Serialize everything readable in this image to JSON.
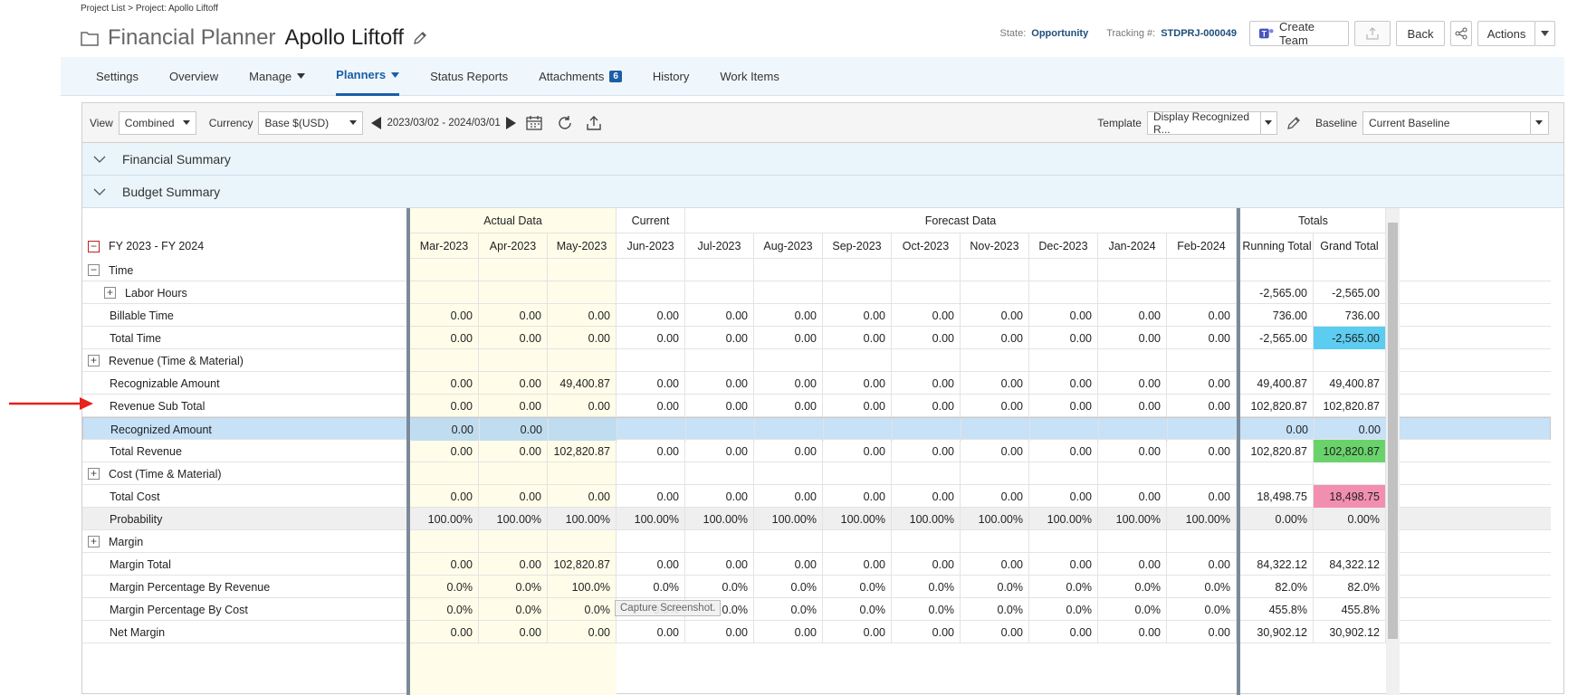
{
  "breadcrumb": "Project List > Project: Apollo Liftoff",
  "header": {
    "title": "Financial Planner",
    "project": "Apollo Liftoff"
  },
  "meta": {
    "state_label": "State:",
    "state_value": "Opportunity",
    "tracking_label": "Tracking #:",
    "tracking_value": "STDPRJ-000049"
  },
  "buttons": {
    "create_team": "Create Team",
    "back": "Back",
    "actions": "Actions"
  },
  "nav": {
    "tabs": [
      {
        "label": "Settings"
      },
      {
        "label": "Overview"
      },
      {
        "label": "Manage"
      },
      {
        "label": "Planners"
      },
      {
        "label": "Status Reports"
      },
      {
        "label": "Attachments",
        "badge": "6"
      },
      {
        "label": "History"
      },
      {
        "label": "Work Items"
      }
    ]
  },
  "toolbar": {
    "view_label": "View",
    "view_value": "Combined",
    "currency_label": "Currency",
    "currency_value": "Base $(USD)",
    "date_range": "2023/03/02 - 2024/03/01",
    "template_label": "Template",
    "template_value": "Display Recognized R...",
    "baseline_label": "Baseline",
    "baseline_value": "Current Baseline"
  },
  "sections": {
    "financial_summary": "Financial Summary",
    "budget_summary": "Budget Summary"
  },
  "grid": {
    "period": "FY 2023 - FY 2024",
    "groups": {
      "actual": "Actual Data",
      "current": "Current",
      "forecast": "Forecast Data",
      "totals": "Totals"
    },
    "months": [
      "Mar-2023",
      "Apr-2023",
      "May-2023",
      "Jun-2023",
      "Jul-2023",
      "Aug-2023",
      "Sep-2023",
      "Oct-2023",
      "Nov-2023",
      "Dec-2023",
      "Jan-2024",
      "Feb-2024"
    ],
    "total_headers": [
      "Running Total",
      "Grand Total"
    ],
    "rows": [
      {
        "label": "Time",
        "expand": "minus",
        "indent": 0,
        "values": [
          "",
          "",
          "",
          "",
          "",
          "",
          "",
          "",
          "",
          "",
          "",
          ""
        ],
        "running": "",
        "grand": ""
      },
      {
        "label": "Labor Hours",
        "expand": "plus",
        "indent": 1,
        "values": [
          "",
          "",
          "",
          "",
          "",
          "",
          "",
          "",
          "",
          "",
          "",
          ""
        ],
        "running": "-2,565.00",
        "grand": "-2,565.00"
      },
      {
        "label": "Billable Time",
        "indent": 0,
        "values": [
          "0.00",
          "0.00",
          "0.00",
          "0.00",
          "0.00",
          "0.00",
          "0.00",
          "0.00",
          "0.00",
          "0.00",
          "0.00",
          "0.00"
        ],
        "running": "736.00",
        "grand": "736.00"
      },
      {
        "label": "Total Time",
        "indent": 0,
        "values": [
          "0.00",
          "0.00",
          "0.00",
          "0.00",
          "0.00",
          "0.00",
          "0.00",
          "0.00",
          "0.00",
          "0.00",
          "0.00",
          "0.00"
        ],
        "running": "-2,565.00",
        "grand": "-2,565.00",
        "grand_color": "#5ccdf0"
      },
      {
        "label": "Revenue (Time & Material)",
        "expand": "plus",
        "indent": 0,
        "values": [
          "",
          "",
          "",
          "",
          "",
          "",
          "",
          "",
          "",
          "",
          "",
          ""
        ],
        "running": "",
        "grand": ""
      },
      {
        "label": "Recognizable Amount",
        "indent": 0,
        "values": [
          "0.00",
          "0.00",
          "49,400.87",
          "0.00",
          "0.00",
          "0.00",
          "0.00",
          "0.00",
          "0.00",
          "0.00",
          "0.00",
          "0.00"
        ],
        "running": "49,400.87",
        "grand": "49,400.87"
      },
      {
        "label": "Revenue Sub Total",
        "indent": 0,
        "values": [
          "0.00",
          "0.00",
          "0.00",
          "0.00",
          "0.00",
          "0.00",
          "0.00",
          "0.00",
          "0.00",
          "0.00",
          "0.00",
          "0.00"
        ],
        "running": "102,820.87",
        "grand": "102,820.87"
      },
      {
        "label": "Recognized Amount",
        "indent": 0,
        "selected": true,
        "values": [
          "0.00",
          "0.00",
          "",
          "",
          "",
          "",
          "",
          "",
          "",
          "",
          "",
          ""
        ],
        "running": "0.00",
        "grand": "0.00"
      },
      {
        "label": "Total Revenue",
        "indent": 0,
        "values": [
          "0.00",
          "0.00",
          "102,820.87",
          "0.00",
          "0.00",
          "0.00",
          "0.00",
          "0.00",
          "0.00",
          "0.00",
          "0.00",
          "0.00"
        ],
        "running": "102,820.87",
        "grand": "102,820.87",
        "grand_color": "#69d26b"
      },
      {
        "label": "Cost (Time & Material)",
        "expand": "plus",
        "indent": 0,
        "values": [
          "",
          "",
          "",
          "",
          "",
          "",
          "",
          "",
          "",
          "",
          "",
          ""
        ],
        "running": "",
        "grand": ""
      },
      {
        "label": "Total Cost",
        "indent": 0,
        "values": [
          "0.00",
          "0.00",
          "0.00",
          "0.00",
          "0.00",
          "0.00",
          "0.00",
          "0.00",
          "0.00",
          "0.00",
          "0.00",
          "0.00"
        ],
        "running": "18,498.75",
        "grand": "18,498.75",
        "grand_color": "#f28fb0"
      },
      {
        "label": "Probability",
        "indent": 0,
        "prob": true,
        "values": [
          "100.00%",
          "100.00%",
          "100.00%",
          "100.00%",
          "100.00%",
          "100.00%",
          "100.00%",
          "100.00%",
          "100.00%",
          "100.00%",
          "100.00%",
          "100.00%"
        ],
        "running": "0.00%",
        "grand": "0.00%"
      },
      {
        "label": "Margin",
        "expand": "plus",
        "indent": 0,
        "values": [
          "",
          "",
          "",
          "",
          "",
          "",
          "",
          "",
          "",
          "",
          "",
          ""
        ],
        "running": "",
        "grand": ""
      },
      {
        "label": "Margin Total",
        "indent": 0,
        "values": [
          "0.00",
          "0.00",
          "102,820.87",
          "0.00",
          "0.00",
          "0.00",
          "0.00",
          "0.00",
          "0.00",
          "0.00",
          "0.00",
          "0.00"
        ],
        "running": "84,322.12",
        "grand": "84,322.12"
      },
      {
        "label": "Margin Percentage By Revenue",
        "indent": 0,
        "values": [
          "0.0%",
          "0.0%",
          "100.0%",
          "0.0%",
          "0.0%",
          "0.0%",
          "0.0%",
          "0.0%",
          "0.0%",
          "0.0%",
          "0.0%",
          "0.0%"
        ],
        "running": "82.0%",
        "grand": "82.0%"
      },
      {
        "label": "Margin Percentage By Cost",
        "indent": 0,
        "values": [
          "0.0%",
          "0.0%",
          "0.0%",
          "0.0%",
          "0.0%",
          "0.0%",
          "0.0%",
          "0.0%",
          "0.0%",
          "0.0%",
          "0.0%",
          "0.0%"
        ],
        "running": "455.8%",
        "grand": "455.8%"
      },
      {
        "label": "Net Margin",
        "indent": 0,
        "values": [
          "0.00",
          "0.00",
          "0.00",
          "0.00",
          "0.00",
          "0.00",
          "0.00",
          "0.00",
          "0.00",
          "0.00",
          "0.00",
          "0.00"
        ],
        "running": "30,902.12",
        "grand": "30,902.12"
      }
    ]
  },
  "tooltip": "Capture Screenshot.",
  "colors": {
    "actual_bg": "#fffde9",
    "accent": "#1a5ea8",
    "selected_row": "#c7e1f7",
    "arrow": "#e8211b"
  }
}
